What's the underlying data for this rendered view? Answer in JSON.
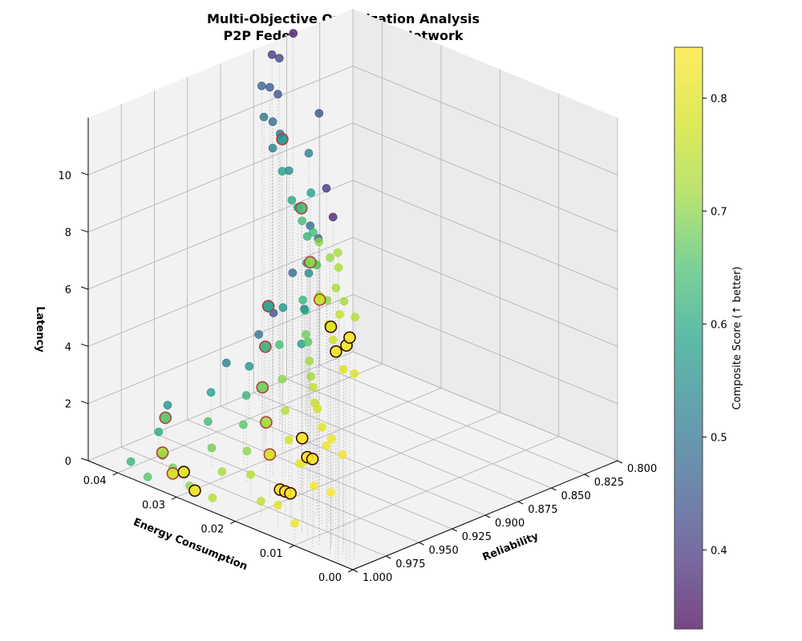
{
  "chart_data": {
    "type": "scatter3d",
    "title": [
      "Multi-Objective Optimization Analysis",
      "P2P Federated Learning Network"
    ],
    "axes": {
      "x": {
        "label": "Energy Consumption",
        "range": [
          0.0,
          0.045
        ],
        "ticks": [
          0.0,
          0.01,
          0.02,
          0.03,
          0.04
        ],
        "tick_labels": [
          "0.00",
          "0.01",
          "0.02",
          "0.03",
          "0.04"
        ]
      },
      "y": {
        "label": "Reliability",
        "range": [
          0.8,
          1.0
        ],
        "ticks": [
          0.8,
          0.825,
          0.85,
          0.875,
          0.9,
          0.925,
          0.95,
          0.975,
          1.0
        ],
        "tick_labels": [
          "0.800",
          "0.825",
          "0.850",
          "0.875",
          "0.900",
          "0.925",
          "0.950",
          "0.975",
          "1.000"
        ]
      },
      "z": {
        "label": "Latency",
        "range": [
          0,
          12
        ],
        "ticks": [
          0,
          2,
          4,
          6,
          8,
          10
        ],
        "tick_labels": [
          "0",
          "2",
          "4",
          "6",
          "8",
          "10"
        ]
      }
    },
    "colorbar": {
      "label": "Composite Score (↑ better)",
      "colormap": "viridis",
      "range": [
        0.33,
        0.845
      ],
      "ticks": [
        0.4,
        0.5,
        0.6,
        0.7,
        0.8
      ],
      "tick_labels": [
        "0.4",
        "0.5",
        "0.6",
        "0.7",
        "0.8"
      ]
    },
    "pareto_highlight": "larger markers with dark/red outline",
    "series": [
      {
        "name": "solutions",
        "points": [
          [
            0.003,
            0.998,
            10.8,
            0.72
          ],
          [
            0.005,
            0.995,
            10.4,
            0.71
          ],
          [
            0.004,
            0.993,
            10.1,
            0.73
          ],
          [
            0.008,
            0.99,
            10.6,
            0.7
          ],
          [
            0.012,
            0.985,
            10.9,
            0.64
          ],
          [
            0.016,
            0.975,
            11.1,
            0.6
          ],
          [
            0.021,
            0.96,
            11.4,
            0.58
          ],
          [
            0.026,
            0.945,
            11.5,
            0.52
          ],
          [
            0.032,
            0.925,
            11.7,
            0.5
          ],
          [
            0.038,
            0.9,
            11.8,
            0.47
          ],
          [
            0.043,
            0.87,
            11.9,
            0.4
          ],
          [
            0.045,
            0.845,
            12.0,
            0.36
          ],
          [
            0.044,
            0.86,
            11.5,
            0.42
          ],
          [
            0.04,
            0.885,
            11.3,
            0.45
          ],
          [
            0.035,
            0.905,
            10.9,
            0.48
          ],
          [
            0.003,
            0.985,
            8.3,
            0.74
          ],
          [
            0.006,
            0.98,
            8.5,
            0.72
          ],
          [
            0.01,
            0.975,
            8.1,
            0.7
          ],
          [
            0.014,
            0.965,
            8.8,
            0.66
          ],
          [
            0.019,
            0.95,
            9.1,
            0.62
          ],
          [
            0.024,
            0.935,
            9.4,
            0.58
          ],
          [
            0.03,
            0.915,
            9.8,
            0.54
          ],
          [
            0.036,
            0.895,
            10.2,
            0.5
          ],
          [
            0.042,
            0.87,
            10.6,
            0.44
          ],
          [
            0.009,
            0.97,
            7.6,
            0.76
          ],
          [
            0.013,
            0.955,
            7.9,
            0.73
          ],
          [
            0.002,
            0.99,
            6.5,
            0.8
          ],
          [
            0.005,
            0.985,
            6.3,
            0.79
          ],
          [
            0.009,
            0.975,
            6.8,
            0.77
          ],
          [
            0.012,
            0.965,
            6.9,
            0.76
          ],
          [
            0.017,
            0.95,
            7.2,
            0.72
          ],
          [
            0.022,
            0.93,
            7.5,
            0.68
          ],
          [
            0.027,
            0.91,
            7.8,
            0.64
          ],
          [
            0.033,
            0.885,
            8.2,
            0.58
          ],
          [
            0.039,
            0.86,
            8.6,
            0.52
          ],
          [
            0.044,
            0.83,
            9.0,
            0.44
          ],
          [
            0.004,
            0.99,
            3.5,
            0.83
          ],
          [
            0.007,
            0.985,
            3.7,
            0.82
          ],
          [
            0.009,
            0.98,
            3.2,
            0.82
          ],
          [
            0.012,
            0.97,
            3.4,
            0.8
          ],
          [
            0.015,
            0.96,
            3.6,
            0.78
          ],
          [
            0.018,
            0.95,
            3.9,
            0.76
          ],
          [
            0.022,
            0.935,
            4.2,
            0.72
          ],
          [
            0.026,
            0.92,
            4.5,
            0.68
          ],
          [
            0.031,
            0.9,
            4.9,
            0.62
          ],
          [
            0.036,
            0.875,
            5.3,
            0.56
          ],
          [
            0.041,
            0.85,
            5.7,
            0.48
          ],
          [
            0.045,
            0.82,
            6.1,
            0.4
          ],
          [
            0.02,
            0.94,
            3.0,
            0.76
          ],
          [
            0.024,
            0.925,
            3.3,
            0.72
          ],
          [
            0.029,
            0.905,
            3.7,
            0.66
          ],
          [
            0.034,
            0.885,
            4.0,
            0.6
          ],
          [
            0.039,
            0.86,
            4.4,
            0.54
          ],
          [
            0.043,
            0.835,
            4.8,
            0.46
          ],
          [
            0.045,
            0.815,
            5.0,
            0.38
          ],
          [
            0.006,
            0.99,
            2.0,
            0.84
          ],
          [
            0.01,
            0.985,
            1.8,
            0.83
          ],
          [
            0.014,
            0.975,
            2.1,
            0.82
          ],
          [
            0.017,
            0.965,
            1.6,
            0.8
          ],
          [
            0.021,
            0.955,
            1.9,
            0.78
          ],
          [
            0.025,
            0.94,
            2.3,
            0.74
          ],
          [
            0.03,
            0.92,
            2.6,
            0.7
          ],
          [
            0.035,
            0.9,
            3.0,
            0.64
          ],
          [
            0.04,
            0.875,
            3.4,
            0.56
          ],
          [
            0.044,
            0.85,
            3.8,
            0.48
          ],
          [
            0.038,
            0.87,
            2.2,
            0.58
          ],
          [
            0.042,
            0.85,
            2.7,
            0.5
          ],
          [
            0.011,
            0.995,
            0.6,
            0.82
          ],
          [
            0.015,
            0.99,
            0.8,
            0.8
          ],
          [
            0.019,
            0.985,
            0.5,
            0.76
          ],
          [
            0.023,
            0.975,
            0.9,
            0.74
          ],
          [
            0.027,
            0.96,
            1.1,
            0.7
          ],
          [
            0.031,
            0.945,
            1.4,
            0.66
          ],
          [
            0.035,
            0.925,
            1.7,
            0.62
          ],
          [
            0.039,
            0.905,
            2.0,
            0.56
          ],
          [
            0.043,
            0.88,
            2.3,
            0.5
          ],
          [
            0.045,
            0.86,
            2.5,
            0.44
          ],
          [
            0.029,
            0.97,
            0.4,
            0.72
          ],
          [
            0.033,
            0.96,
            0.7,
            0.68
          ],
          [
            0.037,
            0.945,
            1.0,
            0.64
          ],
          [
            0.041,
            0.925,
            1.3,
            0.58
          ],
          [
            0.044,
            0.9,
            1.6,
            0.52
          ],
          [
            0.025,
            0.995,
            0.3,
            0.74
          ],
          [
            0.03,
            0.99,
            0.2,
            0.7
          ],
          [
            0.034,
            0.985,
            0.4,
            0.68
          ],
          [
            0.038,
            0.975,
            0.3,
            0.64
          ],
          [
            0.042,
            0.96,
            0.5,
            0.6
          ],
          [
            0.045,
            0.94,
            0.8,
            0.56
          ],
          [
            0.036,
            0.995,
            0.1,
            0.66
          ],
          [
            0.04,
            0.99,
            0.2,
            0.62
          ]
        ]
      },
      {
        "name": "pareto",
        "points": [
          [
            0.001,
            0.998,
            8.0,
            0.84
          ],
          [
            0.002,
            0.996,
            7.6,
            0.83
          ],
          [
            0.004,
            0.995,
            7.2,
            0.82
          ],
          [
            0.006,
            0.99,
            7.8,
            0.8
          ],
          [
            0.009,
            0.985,
            8.4,
            0.76
          ],
          [
            0.014,
            0.97,
            9.0,
            0.7
          ],
          [
            0.02,
            0.95,
            10.0,
            0.64
          ],
          [
            0.03,
            0.92,
            11.0,
            0.56
          ],
          [
            0.008,
            0.995,
            3.1,
            0.84
          ],
          [
            0.01,
            0.99,
            2.9,
            0.845
          ],
          [
            0.012,
            0.985,
            3.3,
            0.84
          ],
          [
            0.014,
            0.985,
            1.2,
            0.845
          ],
          [
            0.016,
            0.98,
            1.0,
            0.84
          ],
          [
            0.018,
            0.975,
            0.8,
            0.83
          ],
          [
            0.022,
            0.965,
            1.5,
            0.78
          ],
          [
            0.026,
            0.95,
            2.0,
            0.72
          ],
          [
            0.03,
            0.935,
            2.6,
            0.68
          ],
          [
            0.034,
            0.915,
            3.3,
            0.62
          ],
          [
            0.038,
            0.895,
            4.0,
            0.58
          ],
          [
            0.028,
            0.995,
            0.3,
            0.82
          ],
          [
            0.031,
            0.99,
            0.6,
            0.8
          ],
          [
            0.034,
            0.985,
            0.2,
            0.78
          ],
          [
            0.038,
            0.975,
            0.4,
            0.72
          ],
          [
            0.042,
            0.955,
            0.9,
            0.66
          ]
        ]
      }
    ]
  }
}
